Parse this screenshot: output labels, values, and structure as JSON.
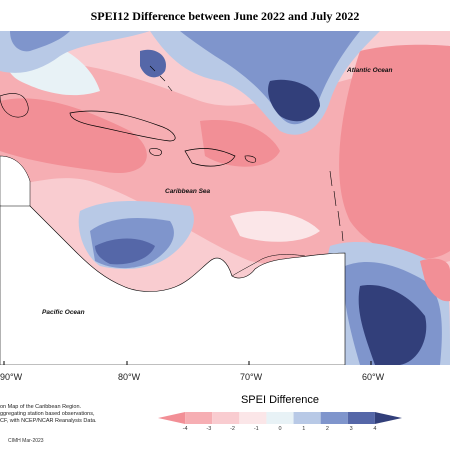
{
  "title": "SPEI12 Difference between June 2022 and July 2022",
  "map_labels": {
    "atlantic": "Atlantic Ocean",
    "caribbean": "Caribbean Sea",
    "pacific": "Pacific Ocean"
  },
  "longitude_labels": [
    "90°W",
    "80°W",
    "70°W",
    "60°W"
  ],
  "notes": {
    "line1": "on Map of the Caribbean Region.",
    "line2": "ggregating station based observations,",
    "line3": "CF, with NCEP/NCAR Reanalysis Data.",
    "credit": "CIMH Mar-2023"
  },
  "colorbar": {
    "title": "SPEI Difference",
    "ticks": [
      "-4",
      "-3",
      "-2",
      "-1",
      "0",
      "1",
      "2",
      "3",
      "4"
    ],
    "colors": [
      "#f28f96",
      "#f6aeb3",
      "#f9ccd0",
      "#fbe6e8",
      "#e8f2f6",
      "#b8c9e6",
      "#7f95cc",
      "#5567a8",
      "#323f7a"
    ]
  },
  "palette": {
    "ocean_pink": "#f6aeb3",
    "deep_pink": "#f28f96",
    "land": "#ffffff",
    "blue_dark": "#323f7a"
  }
}
